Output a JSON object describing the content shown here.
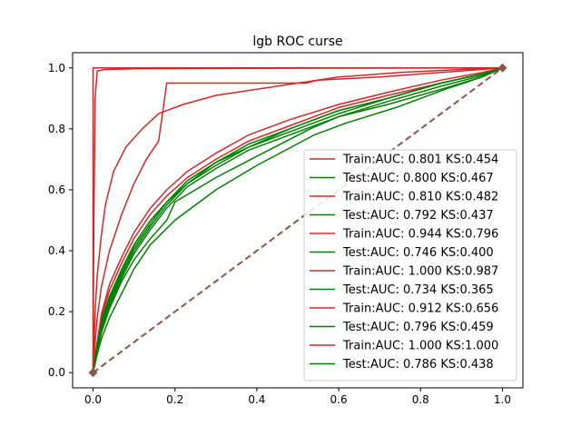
{
  "chart_data": {
    "type": "line",
    "title": "lgb ROC curse",
    "xlabel": "",
    "ylabel": "",
    "xlim": [
      -0.05,
      1.05
    ],
    "ylim": [
      -0.05,
      1.05
    ],
    "xticks": [
      "0.0",
      "0.2",
      "0.4",
      "0.6",
      "0.8",
      "1.0"
    ],
    "yticks": [
      "0.0",
      "0.2",
      "0.4",
      "0.6",
      "0.8",
      "1.0"
    ],
    "grid": false,
    "legend_position": "lower-right",
    "colors": {
      "train": "#d62728",
      "test": "#008000",
      "diagonal": "#8c564b"
    },
    "series": [
      {
        "name": "Train:AUC: 0.801 KS:0.454",
        "role": "train",
        "points": [
          [
            0,
            0
          ],
          [
            0.005,
            0.05
          ],
          [
            0.01,
            0.1
          ],
          [
            0.02,
            0.18
          ],
          [
            0.04,
            0.27
          ],
          [
            0.07,
            0.36
          ],
          [
            0.1,
            0.44
          ],
          [
            0.14,
            0.52
          ],
          [
            0.18,
            0.58
          ],
          [
            0.23,
            0.64
          ],
          [
            0.3,
            0.7
          ],
          [
            0.38,
            0.76
          ],
          [
            0.48,
            0.81
          ],
          [
            0.6,
            0.87
          ],
          [
            0.72,
            0.91
          ],
          [
            0.85,
            0.95
          ],
          [
            0.95,
            0.98
          ],
          [
            1,
            1
          ]
        ]
      },
      {
        "name": "Test:AUC: 0.800 KS:0.467",
        "role": "test",
        "points": [
          [
            0,
            0
          ],
          [
            0.005,
            0.05
          ],
          [
            0.01,
            0.1
          ],
          [
            0.02,
            0.17
          ],
          [
            0.04,
            0.25
          ],
          [
            0.07,
            0.34
          ],
          [
            0.1,
            0.42
          ],
          [
            0.14,
            0.5
          ],
          [
            0.18,
            0.56
          ],
          [
            0.23,
            0.63
          ],
          [
            0.3,
            0.69
          ],
          [
            0.38,
            0.75
          ],
          [
            0.48,
            0.8
          ],
          [
            0.6,
            0.86
          ],
          [
            0.72,
            0.9
          ],
          [
            0.85,
            0.95
          ],
          [
            0.95,
            0.98
          ],
          [
            1,
            1
          ]
        ]
      },
      {
        "name": "Train:AUC: 0.810 KS:0.482",
        "role": "train",
        "points": [
          [
            0,
            0
          ],
          [
            0.005,
            0.05
          ],
          [
            0.01,
            0.1
          ],
          [
            0.02,
            0.19
          ],
          [
            0.04,
            0.29
          ],
          [
            0.07,
            0.38
          ],
          [
            0.1,
            0.46
          ],
          [
            0.14,
            0.54
          ],
          [
            0.18,
            0.6
          ],
          [
            0.23,
            0.66
          ],
          [
            0.3,
            0.72
          ],
          [
            0.38,
            0.78
          ],
          [
            0.48,
            0.83
          ],
          [
            0.6,
            0.88
          ],
          [
            0.72,
            0.92
          ],
          [
            0.85,
            0.96
          ],
          [
            0.95,
            0.985
          ],
          [
            1,
            1
          ]
        ]
      },
      {
        "name": "Test:AUC: 0.792 KS:0.437",
        "role": "test",
        "points": [
          [
            0,
            0
          ],
          [
            0.005,
            0.04
          ],
          [
            0.01,
            0.08
          ],
          [
            0.02,
            0.15
          ],
          [
            0.04,
            0.23
          ],
          [
            0.07,
            0.32
          ],
          [
            0.1,
            0.4
          ],
          [
            0.14,
            0.48
          ],
          [
            0.18,
            0.55
          ],
          [
            0.23,
            0.62
          ],
          [
            0.3,
            0.68
          ],
          [
            0.38,
            0.74
          ],
          [
            0.48,
            0.79
          ],
          [
            0.6,
            0.85
          ],
          [
            0.72,
            0.9
          ],
          [
            0.85,
            0.95
          ],
          [
            0.95,
            0.98
          ],
          [
            1,
            1
          ]
        ]
      },
      {
        "name": "Train:AUC: 0.944 KS:0.796",
        "role": "train",
        "points": [
          [
            0,
            0
          ],
          [
            0.005,
            0.2
          ],
          [
            0.01,
            0.32
          ],
          [
            0.02,
            0.45
          ],
          [
            0.03,
            0.55
          ],
          [
            0.05,
            0.66
          ],
          [
            0.08,
            0.74
          ],
          [
            0.12,
            0.8
          ],
          [
            0.16,
            0.85
          ],
          [
            0.22,
            0.88
          ],
          [
            0.3,
            0.91
          ],
          [
            0.4,
            0.93
          ],
          [
            0.5,
            0.95
          ],
          [
            0.6,
            0.97
          ],
          [
            0.75,
            0.985
          ],
          [
            0.9,
            0.995
          ],
          [
            1,
            1
          ]
        ]
      },
      {
        "name": "Test:AUC: 0.746 KS:0.400",
        "role": "test",
        "points": [
          [
            0,
            0
          ],
          [
            0.005,
            0.03
          ],
          [
            0.01,
            0.07
          ],
          [
            0.02,
            0.13
          ],
          [
            0.04,
            0.21
          ],
          [
            0.07,
            0.3
          ],
          [
            0.1,
            0.37
          ],
          [
            0.14,
            0.44
          ],
          [
            0.18,
            0.5
          ],
          [
            0.2,
            0.56
          ],
          [
            0.3,
            0.64
          ],
          [
            0.4,
            0.71
          ],
          [
            0.53,
            0.8
          ],
          [
            0.6,
            0.84
          ],
          [
            0.72,
            0.88
          ],
          [
            0.85,
            0.93
          ],
          [
            0.95,
            0.97
          ],
          [
            1,
            1
          ]
        ]
      },
      {
        "name": "Train:AUC: 1.000 KS:0.987",
        "role": "train",
        "points": [
          [
            0,
            0
          ],
          [
            0.002,
            0.5
          ],
          [
            0.005,
            0.9
          ],
          [
            0.01,
            0.99
          ],
          [
            0.03,
            0.995
          ],
          [
            0.1,
            0.997
          ],
          [
            0.5,
            0.999
          ],
          [
            1,
            1
          ]
        ]
      },
      {
        "name": "Test:AUC: 0.734 KS:0.365",
        "role": "test",
        "points": [
          [
            0,
            0
          ],
          [
            0.005,
            0.03
          ],
          [
            0.01,
            0.06
          ],
          [
            0.02,
            0.11
          ],
          [
            0.04,
            0.18
          ],
          [
            0.07,
            0.26
          ],
          [
            0.1,
            0.34
          ],
          [
            0.14,
            0.42
          ],
          [
            0.2,
            0.5
          ],
          [
            0.3,
            0.6
          ],
          [
            0.4,
            0.68
          ],
          [
            0.54,
            0.78
          ],
          [
            0.62,
            0.82
          ],
          [
            0.74,
            0.87
          ],
          [
            0.86,
            0.93
          ],
          [
            0.95,
            0.97
          ],
          [
            1,
            1
          ]
        ]
      },
      {
        "name": "Train:AUC: 0.912 KS:0.656",
        "role": "train",
        "points": [
          [
            0,
            0
          ],
          [
            0.005,
            0.1
          ],
          [
            0.01,
            0.18
          ],
          [
            0.02,
            0.28
          ],
          [
            0.04,
            0.4
          ],
          [
            0.07,
            0.52
          ],
          [
            0.1,
            0.62
          ],
          [
            0.13,
            0.7
          ],
          [
            0.16,
            0.76
          ],
          [
            0.18,
            0.95
          ],
          [
            0.52,
            0.95
          ],
          [
            0.55,
            0.96
          ],
          [
            0.7,
            0.97
          ],
          [
            0.85,
            0.985
          ],
          [
            1,
            1
          ]
        ]
      },
      {
        "name": "Test:AUC: 0.796 KS:0.459",
        "role": "test",
        "points": [
          [
            0,
            0
          ],
          [
            0.005,
            0.05
          ],
          [
            0.01,
            0.09
          ],
          [
            0.02,
            0.16
          ],
          [
            0.04,
            0.24
          ],
          [
            0.07,
            0.33
          ],
          [
            0.1,
            0.41
          ],
          [
            0.14,
            0.49
          ],
          [
            0.18,
            0.56
          ],
          [
            0.23,
            0.62
          ],
          [
            0.3,
            0.69
          ],
          [
            0.38,
            0.74
          ],
          [
            0.48,
            0.8
          ],
          [
            0.6,
            0.86
          ],
          [
            0.72,
            0.9
          ],
          [
            0.85,
            0.95
          ],
          [
            0.95,
            0.98
          ],
          [
            1,
            1
          ]
        ]
      },
      {
        "name": "Train:AUC: 1.000 KS:1.000",
        "role": "train",
        "points": [
          [
            0,
            0
          ],
          [
            0,
            1
          ],
          [
            1,
            1
          ]
        ]
      },
      {
        "name": "Test:AUC: 0.786 KS:0.438",
        "role": "test",
        "points": [
          [
            0,
            0
          ],
          [
            0.005,
            0.04
          ],
          [
            0.01,
            0.08
          ],
          [
            0.02,
            0.14
          ],
          [
            0.04,
            0.22
          ],
          [
            0.07,
            0.31
          ],
          [
            0.1,
            0.39
          ],
          [
            0.14,
            0.47
          ],
          [
            0.18,
            0.54
          ],
          [
            0.23,
            0.61
          ],
          [
            0.3,
            0.67
          ],
          [
            0.38,
            0.73
          ],
          [
            0.48,
            0.78
          ],
          [
            0.6,
            0.84
          ],
          [
            0.72,
            0.89
          ],
          [
            0.85,
            0.94
          ],
          [
            0.95,
            0.975
          ],
          [
            1,
            1
          ]
        ]
      }
    ],
    "diagonal": {
      "points": [
        [
          0,
          0
        ],
        [
          1,
          1
        ]
      ],
      "style": "dashed",
      "markers": "diamond"
    }
  }
}
